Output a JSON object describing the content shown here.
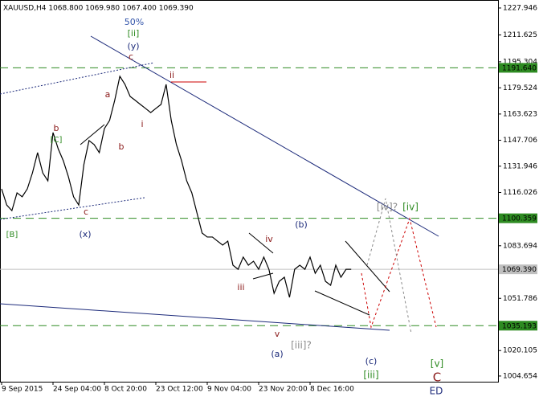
{
  "chart_data": {
    "type": "line",
    "title": "XAUUSD,H4  1068.800 1069.980 1067.400 1069.390",
    "categories": [
      "9 Sep 2015",
      null,
      null,
      null,
      null,
      null,
      null,
      null,
      null,
      null,
      "24 Sep 04:00",
      null,
      null,
      null,
      null,
      null,
      null,
      null,
      null,
      null,
      "8 Oct 20:00",
      null,
      null,
      null,
      null,
      null,
      null,
      null,
      null,
      null,
      "23 Oct 12:00",
      null,
      null,
      null,
      null,
      null,
      null,
      null,
      null,
      null,
      "9 Nov 04:00",
      null,
      null,
      null,
      null,
      null,
      null,
      null,
      null,
      null,
      "23 Nov 20:00",
      null,
      null,
      null,
      null,
      null,
      null,
      null,
      null,
      null,
      "8 Dec 16:00",
      null,
      null,
      null,
      null,
      null,
      null,
      null,
      null
    ],
    "series": [
      {
        "color": "#000000",
        "values": [
          1118.2,
          1108.4,
          1105.0,
          1115.8,
          1113.4,
          1118.2,
          1127.9,
          1140.2,
          1127.9,
          1123.1,
          1152.4,
          1142.6,
          1135.3,
          1125.5,
          1113.4,
          1108.4,
          1132.9,
          1147.5,
          1145.1,
          1140.2,
          1154.8,
          1159.7,
          1171.9,
          1186.5,
          1181.6,
          1174.3,
          1171.9,
          1169.4,
          1167.0,
          1164.5,
          1167.0,
          1169.4,
          1181.6,
          1159.7,
          1145.1,
          1135.3,
          1123.1,
          1115.8,
          1103.6,
          1091.4,
          1089.0,
          1089.0,
          1086.5,
          1084.1,
          1086.5,
          1071.9,
          1069.4,
          1076.8,
          1071.9,
          1074.3,
          1069.4,
          1076.8,
          1069.4,
          1054.8,
          1062.1,
          1064.6,
          1052.4,
          1069.4,
          1071.9,
          1069.4,
          1076.8,
          1067.0,
          1071.9,
          1062.1,
          1059.7,
          1071.9,
          1064.6,
          1069.39,
          1069.39
        ]
      }
    ],
    "ylim": [
      1001.2,
      1232.8
    ],
    "yticks": [
      1227.946,
      1211.625,
      1195.304,
      1179.524,
      1163.623,
      1147.706,
      1131.946,
      1116.026,
      1083.694,
      1051.786,
      1020.105,
      1004.654
    ],
    "levels": [
      {
        "value": 1191.64,
        "label": "1191.640",
        "color": "#2e8b22"
      },
      {
        "value": 1100.359,
        "label": "1100.359",
        "color": "#2e8b22"
      },
      {
        "value": 1069.39,
        "label": "1069.390",
        "color": "#c0c0c0"
      },
      {
        "value": 1035.193,
        "label": "1035.193",
        "color": "#2e8b22"
      }
    ],
    "annotations": [
      "50%",
      "[ii]",
      "(y)",
      "c",
      "ii",
      "a",
      "b",
      "[C]",
      "i",
      "b",
      "c",
      "[B]",
      "(x)",
      "(b)",
      "iv",
      "iii",
      "v",
      "(a)",
      "[iii]?",
      "(c)",
      "[iii]",
      "[iv]?",
      "[iv]",
      "[v]",
      "C",
      "ED"
    ]
  }
}
